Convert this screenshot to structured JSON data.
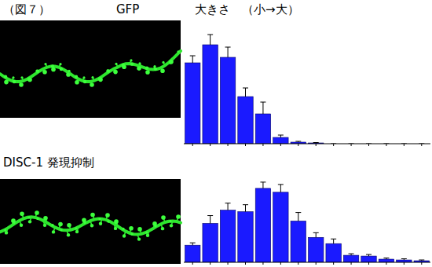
{
  "figure_label": "（図７）",
  "header": "大きさ　（小→大）",
  "chart_data": [
    {
      "type": "bar",
      "title": "GFP",
      "categories": [
        null,
        null,
        null,
        null,
        null,
        null,
        null,
        null,
        null,
        null,
        null,
        null,
        null,
        null
      ],
      "values": [
        20.6,
        25.2,
        22.0,
        12.0,
        7.6,
        1.6,
        0.4,
        0.2,
        0,
        0,
        0,
        0,
        0,
        0
      ],
      "errors": [
        1.8,
        2.6,
        2.6,
        2.2,
        3.0,
        0.6,
        0.2,
        0.1,
        0,
        0,
        0,
        0,
        0,
        0
      ],
      "color": "#1a1aff",
      "ylim": [
        0,
        32
      ],
      "tick_labels": false,
      "grid": false
    },
    {
      "type": "bar",
      "title": "DISC-1 発現抑制",
      "categories": [
        null,
        null,
        null,
        null,
        null,
        null,
        null,
        null,
        null,
        null,
        null,
        null,
        null,
        null
      ],
      "values": [
        4.4,
        10.0,
        13.4,
        13.0,
        19.0,
        18.0,
        10.6,
        6.4,
        4.8,
        1.8,
        1.6,
        0.8,
        0.6,
        0.4
      ],
      "errors": [
        0.6,
        2.0,
        1.8,
        1.8,
        1.6,
        2.0,
        2.2,
        1.2,
        1.2,
        0.4,
        0.4,
        0.3,
        0.3,
        0.2
      ],
      "color": "#1a1aff",
      "ylim": [
        0,
        22
      ],
      "tick_labels": false,
      "grid": false
    }
  ]
}
